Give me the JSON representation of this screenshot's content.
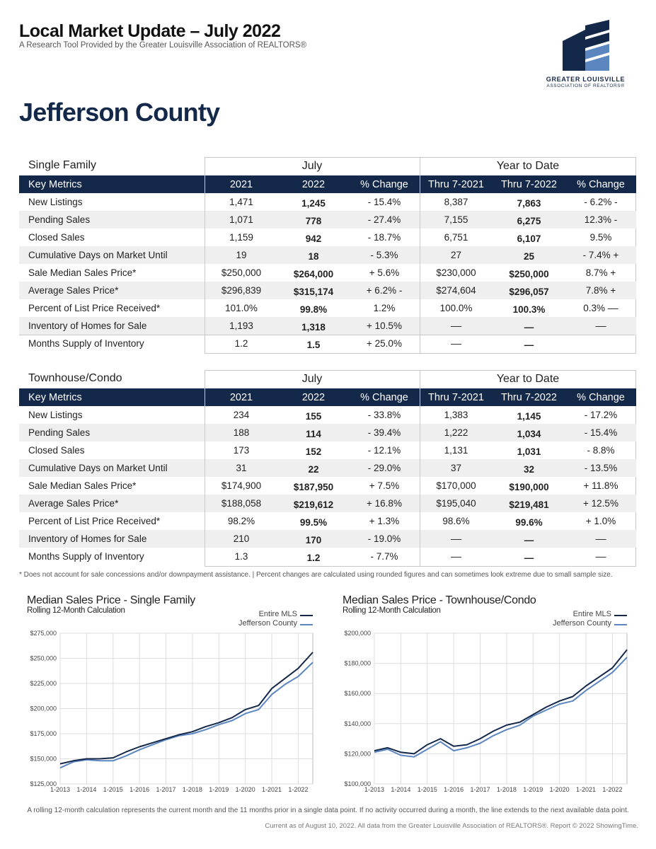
{
  "header": {
    "title": "Local Market Update – July 2022",
    "subtitle": "A Research Tool Provided by the Greater Louisville Association of REALTORS®",
    "county": "Jefferson County",
    "logo_line1": "GREATER LOUISVILLE",
    "logo_line2": "ASSOCIATION OF REALTORS®"
  },
  "colors": {
    "navy": "#14284a",
    "light_blue": "#5b86c0",
    "row_alt": "#efefef"
  },
  "tables": [
    {
      "section": "Single Family",
      "group_july": "July",
      "group_ytd": "Year to Date",
      "columns": [
        "Key Metrics",
        "2021",
        "2022",
        "% Change",
        "Thru 7-2021",
        "Thru 7-2022",
        "% Change"
      ],
      "rows": [
        [
          "New Listings",
          "1,471",
          "1,245",
          "-  15.4%",
          "8,387",
          "7,863",
          "- 6.2% -"
        ],
        [
          "Pending Sales",
          "1,071",
          "778",
          "-  27.4%",
          "7,155",
          "6,275",
          "12.3%  -"
        ],
        [
          "Closed Sales",
          "1,159",
          "942",
          "-  18.7%",
          "6,751",
          "6,107",
          "9.5%"
        ],
        [
          "Cumulative  Days  on  Market  Until",
          "19",
          "18",
          "- 5.3%",
          "27",
          "25",
          "- 7.4% +"
        ],
        [
          "Sale Median Sales Price*",
          "$250,000",
          "$264,000",
          "+   5.6%",
          "$230,000",
          "$250,000",
          "8.7% +"
        ],
        [
          "Average Sales Price*",
          "$296,839",
          "$315,174",
          "+ 6.2% -",
          "$274,604",
          "$296,057",
          "7.8% +"
        ],
        [
          "Percent of List Price Received*",
          "101.0%",
          "99.8%",
          "1.2%",
          "100.0%",
          "100.3%",
          "0.3% ––"
        ],
        [
          "Inventory of Homes for Sale",
          "1,193",
          "1,318",
          "+ 10.5%",
          "––",
          "—",
          "––"
        ],
        [
          "Months Supply of Inventory",
          "1.2",
          "1.5",
          "+ 25.0%",
          "––",
          "—",
          ""
        ]
      ]
    },
    {
      "section": "Townhouse/Condo",
      "group_july": "July",
      "group_ytd": "Year to Date",
      "columns": [
        "Key Metrics",
        "2021",
        "2022",
        "% Change",
        "Thru 7-2021",
        "Thru 7-2022",
        "% Change"
      ],
      "rows": [
        [
          "New Listings",
          "234",
          "155",
          "-  33.8%",
          "1,383",
          "1,145",
          "-  17.2%"
        ],
        [
          "Pending Sales",
          "188",
          "114",
          "-  39.4%",
          "1,222",
          "1,034",
          "-  15.4%"
        ],
        [
          "Closed Sales",
          "173",
          "152",
          "-  12.1%",
          "1,131",
          "1,031",
          "- 8.8%"
        ],
        [
          "Cumulative  Days  on  Market  Until",
          "31",
          "22",
          "-  29.0%",
          "37",
          "32",
          "- 13.5%"
        ],
        [
          "Sale Median Sales Price*",
          "$174,900",
          "$187,950",
          "+   7.5%",
          "$170,000",
          "$190,000",
          "+ 11.8%"
        ],
        [
          "Average Sales Price*",
          "$188,058",
          "$219,612",
          "+  16.8%",
          "$195,040",
          "$219,481",
          "+ 12.5%"
        ],
        [
          "Percent of List Price Received*",
          "98.2%",
          "99.5%",
          "+ 1.3%",
          "98.6%",
          "99.6%",
          "+ 1.0%"
        ],
        [
          "Inventory of Homes for Sale",
          "210",
          "170",
          "-  19.0%",
          "––",
          "—",
          "––"
        ],
        [
          "Months Supply of Inventory",
          "1.3",
          "1.2",
          "- 7.7%",
          "––",
          "—",
          "––"
        ]
      ]
    }
  ],
  "note": "* Does not account for sale concessions and/or downpayment assistance.  |  Percent changes are calculated using rounded figures and can sometimes look extreme due to small sample size.",
  "chart_data": [
    {
      "type": "line",
      "title": "Median Sales Price - Single Family",
      "subtitle": "Rolling 12-Month Calculation",
      "legend": [
        "Entire MLS",
        "Jefferson County"
      ],
      "legend_placement": "top-right",
      "x_ticks": [
        "1-2013",
        "1-2014",
        "1-2015",
        "1-2016",
        "1-2017",
        "1-2018",
        "1-2019",
        "1-2020",
        "1-2021",
        "1-2022"
      ],
      "y_ticks": [
        "$125,000",
        "$150,000",
        "$175,000",
        "$200,000",
        "$225,000",
        "$250,000",
        "$275,000"
      ],
      "ylim": [
        125000,
        275000
      ],
      "xlim": [
        2013.0,
        2022.55
      ],
      "grid": true,
      "series": [
        {
          "name": "Entire MLS",
          "color": "#14284a",
          "x": [
            2013.0,
            2013.5,
            2014.0,
            2014.5,
            2015.0,
            2015.5,
            2016.0,
            2016.5,
            2017.0,
            2017.5,
            2018.0,
            2018.5,
            2019.0,
            2019.5,
            2020.0,
            2020.5,
            2021.0,
            2021.5,
            2022.0,
            2022.55
          ],
          "y": [
            145000,
            148000,
            150000,
            150000,
            151000,
            157000,
            162000,
            166000,
            170000,
            174000,
            177000,
            182000,
            186000,
            191000,
            199000,
            203000,
            220000,
            230000,
            240000,
            256000
          ]
        },
        {
          "name": "Jefferson County",
          "color": "#5b86c0",
          "x": [
            2013.0,
            2013.5,
            2014.0,
            2014.5,
            2015.0,
            2015.5,
            2016.0,
            2016.5,
            2017.0,
            2017.5,
            2018.0,
            2018.5,
            2019.0,
            2019.5,
            2020.0,
            2020.5,
            2021.0,
            2021.5,
            2022.0,
            2022.55
          ],
          "y": [
            141000,
            147000,
            149000,
            148000,
            148000,
            153000,
            159000,
            164000,
            169000,
            173000,
            175000,
            179000,
            184000,
            188000,
            195000,
            199000,
            214000,
            224000,
            232000,
            246000
          ]
        }
      ]
    },
    {
      "type": "line",
      "title": "Median Sales Price - Townhouse/Condo",
      "subtitle": "Rolling 12-Month Calculation",
      "legend": [
        "Entire MLS",
        "Jefferson County"
      ],
      "legend_placement": "top-right",
      "x_ticks": [
        "1-2013",
        "1-2014",
        "1-2015",
        "1-2016",
        "1-2017",
        "1-2018",
        "1-2019",
        "1-2020",
        "1-2021",
        "1-2022"
      ],
      "y_ticks": [
        "$100,000",
        "$120,000",
        "$140,000",
        "$160,000",
        "$180,000",
        "$200,000"
      ],
      "ylim": [
        100000,
        200000
      ],
      "xlim": [
        2013.0,
        2022.55
      ],
      "grid": true,
      "series": [
        {
          "name": "Entire MLS",
          "color": "#14284a",
          "x": [
            2013.0,
            2013.5,
            2014.0,
            2014.5,
            2015.0,
            2015.5,
            2016.0,
            2016.5,
            2017.0,
            2017.5,
            2018.0,
            2018.5,
            2019.0,
            2019.5,
            2020.0,
            2020.5,
            2021.0,
            2021.5,
            2022.0,
            2022.55
          ],
          "y": [
            122000,
            124000,
            121000,
            120000,
            126000,
            130000,
            125000,
            126000,
            130000,
            135000,
            139000,
            141000,
            146000,
            151000,
            155000,
            158000,
            165000,
            171000,
            177000,
            189000
          ]
        },
        {
          "name": "Jefferson County",
          "color": "#5b86c0",
          "x": [
            2013.0,
            2013.5,
            2014.0,
            2014.5,
            2015.0,
            2015.5,
            2016.0,
            2016.5,
            2017.0,
            2017.5,
            2018.0,
            2018.5,
            2019.0,
            2019.5,
            2020.0,
            2020.5,
            2021.0,
            2021.5,
            2022.0,
            2022.55
          ],
          "y": [
            121000,
            123000,
            119000,
            118000,
            123000,
            128000,
            122000,
            124000,
            127000,
            132000,
            136000,
            139000,
            145000,
            149000,
            153000,
            155000,
            162000,
            168000,
            174000,
            184000
          ]
        }
      ]
    }
  ],
  "footnote": "A rolling 12-month calculation represents the current month and the 11 months prior in a single data point. If no activity occurred during a month, the line extends to the next available data point.",
  "credit": "Current as of August 10, 2022. All data from the Greater Louisville Association of REALTORS®. Report © 2022 ShowingTime."
}
